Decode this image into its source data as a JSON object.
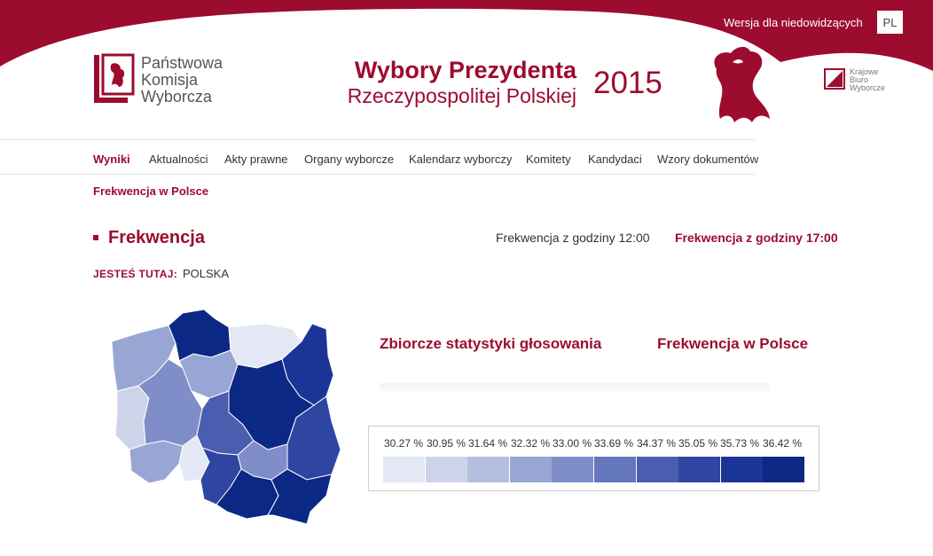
{
  "header": {
    "logo_lines": [
      "Państwowa",
      "Komisja",
      "Wyborcza"
    ],
    "title_main": "Wybory Prezydenta",
    "title_sub": "Rzeczypospolitej Polskiej",
    "year": "2015",
    "accessibility_link": "Wersja dla niedowidzących",
    "language": "PL",
    "kbw_lines": [
      "Krajowe",
      "Biuro",
      "Wyborcze"
    ],
    "brand_color": "#9c0c2e"
  },
  "nav": {
    "items": [
      "Wyniki",
      "Aktualności",
      "Akty prawne",
      "Organy wyborcze",
      "Kalendarz wyborczy",
      "Komitety",
      "Kandydaci",
      "Wzory dokumentów"
    ],
    "active_index": 0
  },
  "breadcrumb": "Frekwencja w Polsce",
  "page": {
    "title": "Frekwencja",
    "turnout_links": [
      "Frekwencja z godziny 12:00",
      "Frekwencja z godziny 17:00"
    ],
    "active_turnout_index": 1,
    "you_are_here_label": "JESTEŚ TUTAJ:",
    "you_are_here_value": "POLSKA"
  },
  "sections": {
    "stats_title": "Zbiorcze statystyki głosowania",
    "turnout_title": "Frekwencja w Polsce"
  },
  "map": {
    "regions": [
      {
        "id": "zachodniopomorskie",
        "level": 3
      },
      {
        "id": "pomorskie",
        "level": 9
      },
      {
        "id": "warminsko-mazurskie",
        "level": 0
      },
      {
        "id": "podlaskie",
        "level": 8
      },
      {
        "id": "lubuskie",
        "level": 1
      },
      {
        "id": "wielkopolskie",
        "level": 4
      },
      {
        "id": "kujawsko-pomorskie",
        "level": 3
      },
      {
        "id": "mazowieckie",
        "level": 9
      },
      {
        "id": "lodzkie",
        "level": 6
      },
      {
        "id": "lubelskie",
        "level": 7
      },
      {
        "id": "dolnoslaskie",
        "level": 3
      },
      {
        "id": "opolskie",
        "level": 0
      },
      {
        "id": "swietokrzyskie",
        "level": 4
      },
      {
        "id": "slaskie",
        "level": 7
      },
      {
        "id": "malopolskie",
        "level": 9
      },
      {
        "id": "podkarpackie",
        "level": 9
      }
    ]
  },
  "legend": {
    "labels": [
      "30.27 %",
      "30.95 %",
      "31.64 %",
      "32.32 %",
      "33.00 %",
      "33.69 %",
      "34.37 %",
      "35.05 %",
      "35.73 %",
      "36.42 %"
    ],
    "colors": [
      "#e4e8f4",
      "#cdd4ea",
      "#b4bfe0",
      "#98a6d4",
      "#7f8ec8",
      "#6476bc",
      "#4a5daf",
      "#2f45a2",
      "#1b3596",
      "#0c2885"
    ]
  }
}
